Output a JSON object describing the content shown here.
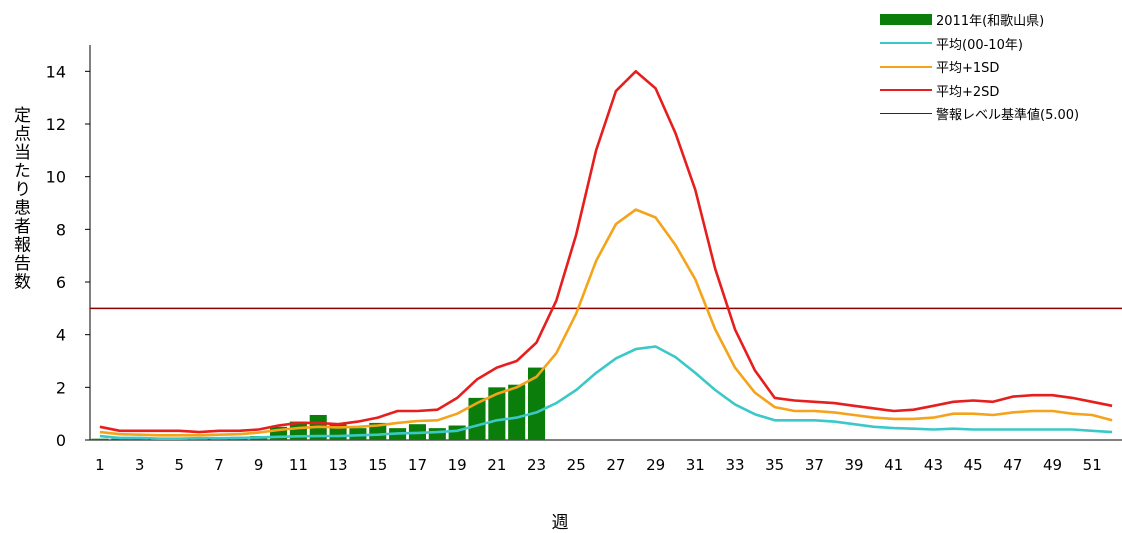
{
  "chart_data": {
    "type": "bar+line",
    "xlabel": "週",
    "ylabel": "定点当たり患者報告数",
    "ylim": [
      0,
      15
    ],
    "yticks": [
      0,
      2,
      4,
      6,
      8,
      10,
      12,
      14
    ],
    "xticks": [
      1,
      3,
      5,
      7,
      9,
      11,
      13,
      15,
      17,
      19,
      21,
      23,
      25,
      27,
      29,
      31,
      33,
      35,
      37,
      39,
      41,
      43,
      45,
      47,
      49,
      51
    ],
    "weeks": [
      1,
      2,
      3,
      4,
      5,
      6,
      7,
      8,
      9,
      10,
      11,
      12,
      13,
      14,
      15,
      16,
      17,
      18,
      19,
      20,
      21,
      22,
      23,
      24,
      25,
      26,
      27,
      28,
      29,
      30,
      31,
      32,
      33,
      34,
      35,
      36,
      37,
      38,
      39,
      40,
      41,
      42,
      43,
      44,
      45,
      46,
      47,
      48,
      49,
      50,
      51,
      52
    ],
    "bars": {
      "name": "2011年(和歌山県)",
      "color": "#0a7d0a",
      "values": [
        0.05,
        0.05,
        0.08,
        0.03,
        0.03,
        0.08,
        0.1,
        0.12,
        0.15,
        0.5,
        0.7,
        0.95,
        0.6,
        0.45,
        0.65,
        0.45,
        0.6,
        0.45,
        0.55,
        1.6,
        2.0,
        2.1,
        2.75
      ]
    },
    "series": [
      {
        "name": "平均(00-10年)",
        "color": "#3cc8c8",
        "values": [
          0.15,
          0.08,
          0.08,
          0.05,
          0.05,
          0.07,
          0.07,
          0.08,
          0.1,
          0.12,
          0.14,
          0.15,
          0.15,
          0.18,
          0.2,
          0.25,
          0.27,
          0.3,
          0.35,
          0.55,
          0.75,
          0.85,
          1.05,
          1.4,
          1.9,
          2.55,
          3.1,
          3.45,
          3.55,
          3.15,
          2.55,
          1.9,
          1.35,
          0.98,
          0.75,
          0.75,
          0.75,
          0.7,
          0.6,
          0.5,
          0.45,
          0.43,
          0.4,
          0.43,
          0.4,
          0.4,
          0.4,
          0.4,
          0.4,
          0.4,
          0.35,
          0.3
        ]
      },
      {
        "name": "平均+1SD",
        "color": "#f5a31a",
        "values": [
          0.3,
          0.22,
          0.2,
          0.18,
          0.18,
          0.18,
          0.2,
          0.22,
          0.28,
          0.38,
          0.45,
          0.5,
          0.48,
          0.5,
          0.55,
          0.65,
          0.72,
          0.75,
          1.0,
          1.4,
          1.75,
          2.0,
          2.4,
          3.3,
          4.8,
          6.8,
          8.2,
          8.75,
          8.45,
          7.4,
          6.1,
          4.2,
          2.75,
          1.8,
          1.25,
          1.1,
          1.1,
          1.05,
          0.95,
          0.85,
          0.8,
          0.8,
          0.85,
          1.0,
          1.0,
          0.95,
          1.05,
          1.1,
          1.1,
          1.0,
          0.95,
          0.75
        ]
      },
      {
        "name": "平均+2SD",
        "color": "#e61e1e",
        "values": [
          0.5,
          0.35,
          0.35,
          0.35,
          0.35,
          0.3,
          0.35,
          0.35,
          0.4,
          0.55,
          0.65,
          0.65,
          0.6,
          0.7,
          0.85,
          1.1,
          1.1,
          1.15,
          1.6,
          2.3,
          2.75,
          3.0,
          3.7,
          5.3,
          7.8,
          11.0,
          13.25,
          14.0,
          13.35,
          11.65,
          9.5,
          6.5,
          4.2,
          2.65,
          1.6,
          1.5,
          1.45,
          1.4,
          1.3,
          1.2,
          1.1,
          1.15,
          1.3,
          1.45,
          1.5,
          1.45,
          1.65,
          1.7,
          1.7,
          1.6,
          1.45,
          1.3
        ]
      }
    ],
    "threshold": {
      "name": "警報レベル基準値(5.00)",
      "value": 5.0,
      "color": "#8b0000"
    },
    "legend_position": "top-right",
    "grid": false
  }
}
